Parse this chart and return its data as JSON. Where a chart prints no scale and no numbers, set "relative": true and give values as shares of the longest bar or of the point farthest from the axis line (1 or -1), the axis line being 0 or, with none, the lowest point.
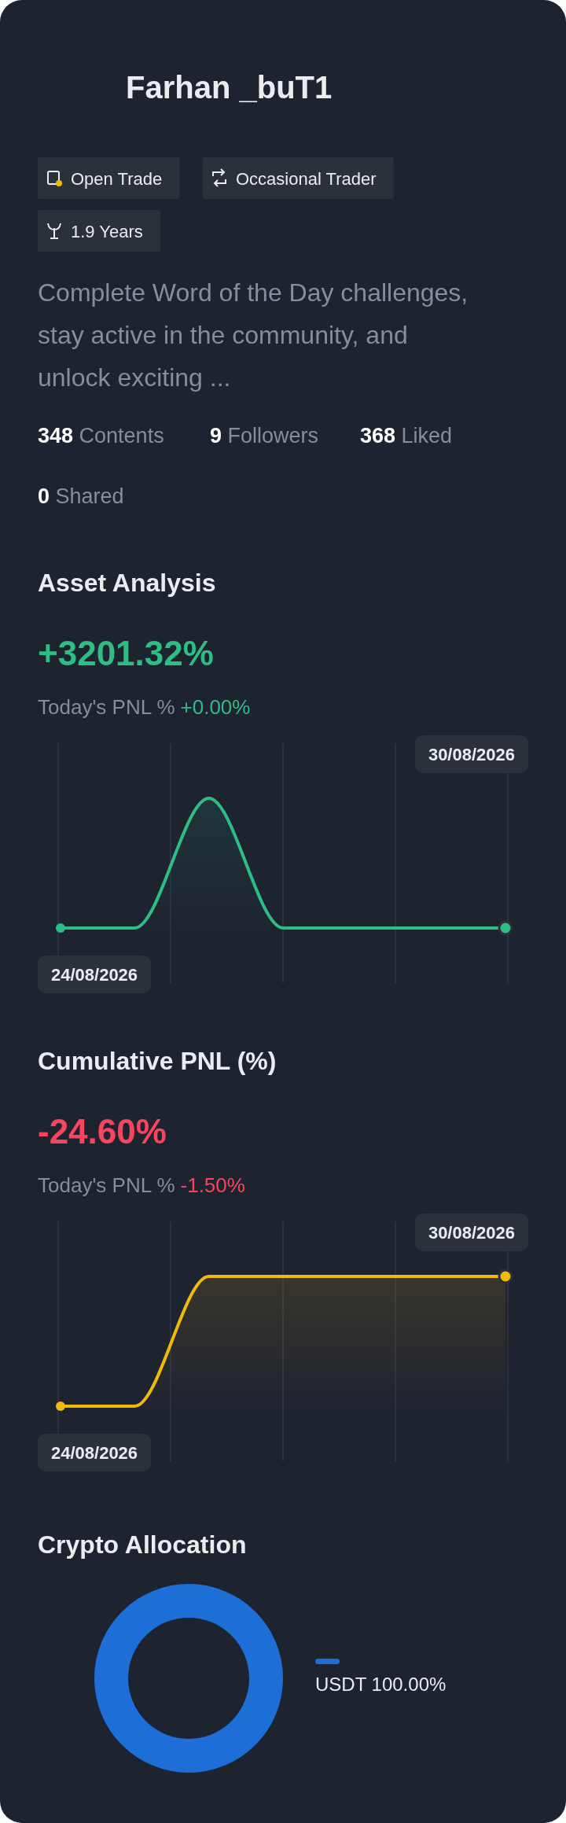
{
  "chart_data": [
    {
      "type": "other",
      "title": "Farhan _buT1",
      "annotations": [
        "Open Trade",
        "Occasional Trader",
        "1.9 Years",
        "Complete Word of the Day challenges, stay active in the community, and unlock exciting ...",
        "348 Contents",
        "9 Followers",
        "368 Liked",
        "0 Shared"
      ]
    },
    {
      "type": "area",
      "title": "Asset Analysis",
      "subtitle": "+3201.32%",
      "annotations": [
        "Today's PNL % +0.00%"
      ],
      "categories": [
        "24/08/2026",
        null,
        null,
        null,
        null,
        null,
        "30/08/2026"
      ],
      "series": [
        {
          "color": "#2ebd85",
          "values": [
            0,
            0,
            1,
            0,
            0,
            0,
            0
          ]
        }
      ],
      "relative": true,
      "grid": "x"
    },
    {
      "type": "area",
      "title": "Cumulative PNL (%)",
      "subtitle": "-24.60%",
      "annotations": [
        "Today's PNL % -1.50%"
      ],
      "categories": [
        "24/08/2026",
        null,
        null,
        null,
        null,
        null,
        "30/08/2026"
      ],
      "series": [
        {
          "color": "#f0b90b",
          "values": [
            0,
            0,
            1,
            1,
            1,
            1,
            1
          ]
        }
      ],
      "relative": true,
      "grid": "x"
    },
    {
      "type": "donut",
      "title": "Crypto Allocation",
      "categories": [
        "USDT"
      ],
      "values": [
        100
      ],
      "colors": [
        "#1e6ed8"
      ],
      "value_labels": [
        "100.00%"
      ],
      "legend": "right"
    }
  ]
}
